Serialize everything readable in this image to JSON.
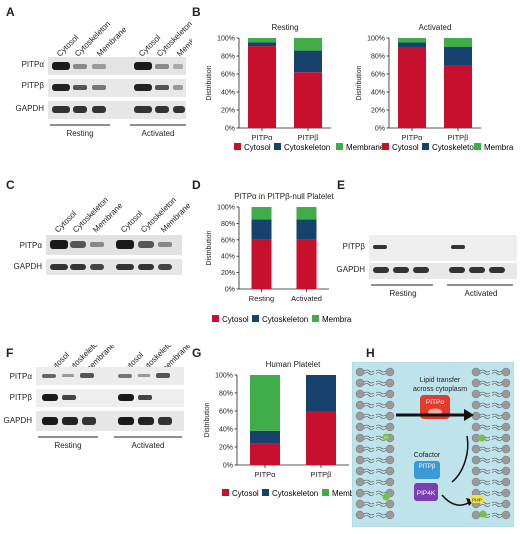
{
  "panel_labels": {
    "A": "A",
    "B": "B",
    "C": "C",
    "D": "D",
    "E": "E",
    "F": "F",
    "G": "G",
    "H": "H"
  },
  "blot_A": {
    "lanes": [
      "Cytosol",
      "Cytoskeleton",
      "Membrane",
      "Cytosol",
      "Cytoskeleton",
      "Membrane"
    ],
    "rows": [
      "PITPα",
      "PITPβ",
      "GAPDH"
    ],
    "groups": [
      "Resting",
      "Activated"
    ]
  },
  "blot_C": {
    "lanes": [
      "Cytosol",
      "Cytoskeleton",
      "Membrane",
      "Cytosol",
      "Cytoskeleton",
      "Membrane"
    ],
    "rows": [
      "PITPα",
      "GAPDH"
    ]
  },
  "blot_E": {
    "rows": [
      "PITPβ",
      "GAPDH"
    ],
    "groups": [
      "Resting",
      "Activated"
    ]
  },
  "blot_F": {
    "lanes": [
      "cytosol",
      "cytoskeleton",
      "membrane",
      "cytosol",
      "cytoskeleton",
      "membrane"
    ],
    "rows": [
      "PITPα",
      "PITPβ",
      "GAPDH"
    ],
    "groups": [
      "Resting",
      "Activated"
    ]
  },
  "legend": {
    "cytosol": "Cytosol",
    "cytoskeleton": "Cytoskeleton",
    "membrane": "Membrane"
  },
  "colors": {
    "cytosol": "#c8102e",
    "cytoskeleton": "#17426e",
    "membrane": "#3fae49"
  },
  "diagram_H": {
    "title_line1": "Lipid transfer",
    "title_line2": "across cytoplasm",
    "pitpa": "PITPα",
    "pitpb": "PITPβ",
    "cofactor": "Cofactor",
    "pip4k": "PIP4K",
    "pi": "PI",
    "pip": "PI4P"
  },
  "chart_data": [
    {
      "id": "B-resting",
      "type": "bar",
      "stacked": true,
      "title": "Resting",
      "ylabel": "Distribution",
      "categories": [
        "PITPα",
        "PITPβ"
      ],
      "yticks": [
        "0%",
        "20%",
        "40%",
        "60%",
        "80%",
        "100%"
      ],
      "ylim": [
        0,
        100
      ],
      "series": [
        {
          "name": "Cytosol",
          "values": [
            91,
            62
          ]
        },
        {
          "name": "Cytoskeleton",
          "values": [
            4,
            24
          ]
        },
        {
          "name": "Membrane",
          "values": [
            5,
            14
          ]
        }
      ]
    },
    {
      "id": "B-activated",
      "type": "bar",
      "stacked": true,
      "title": "Activated",
      "ylabel": "Distribution",
      "categories": [
        "PITPα",
        "PITPβ"
      ],
      "yticks": [
        "0%",
        "20%",
        "40%",
        "60%",
        "80%",
        "100%"
      ],
      "ylim": [
        0,
        100
      ],
      "series": [
        {
          "name": "Cytosol",
          "values": [
            90,
            69
          ]
        },
        {
          "name": "Cytoskeleton",
          "values": [
            5,
            21
          ]
        },
        {
          "name": "Membrane",
          "values": [
            5,
            10
          ]
        }
      ]
    },
    {
      "id": "D",
      "type": "bar",
      "stacked": true,
      "title": "PITPα in PITPβ-null Platelet",
      "ylabel": "Distribution",
      "categories": [
        "Resting",
        "Activated"
      ],
      "yticks": [
        "0%",
        "20%",
        "40%",
        "60%",
        "80%",
        "100%"
      ],
      "ylim": [
        0,
        100
      ],
      "series": [
        {
          "name": "Cytosol",
          "values": [
            60,
            60
          ]
        },
        {
          "name": "Cytoskeleton",
          "values": [
            25,
            25
          ]
        },
        {
          "name": "Membrane",
          "values": [
            15,
            15
          ]
        }
      ]
    },
    {
      "id": "G",
      "type": "bar",
      "stacked": true,
      "title": "Human Platelet",
      "ylabel": "Distribution",
      "categories": [
        "PITPα",
        "PITPβ"
      ],
      "yticks": [
        "0%",
        "20%",
        "40%",
        "60%",
        "80%",
        "100%"
      ],
      "ylim": [
        0,
        100
      ],
      "series": [
        {
          "name": "Cytosol",
          "values": [
            24,
            59
          ]
        },
        {
          "name": "Cytoskeleton",
          "values": [
            14,
            41
          ]
        },
        {
          "name": "Membrane",
          "values": [
            62,
            0
          ]
        }
      ]
    }
  ]
}
